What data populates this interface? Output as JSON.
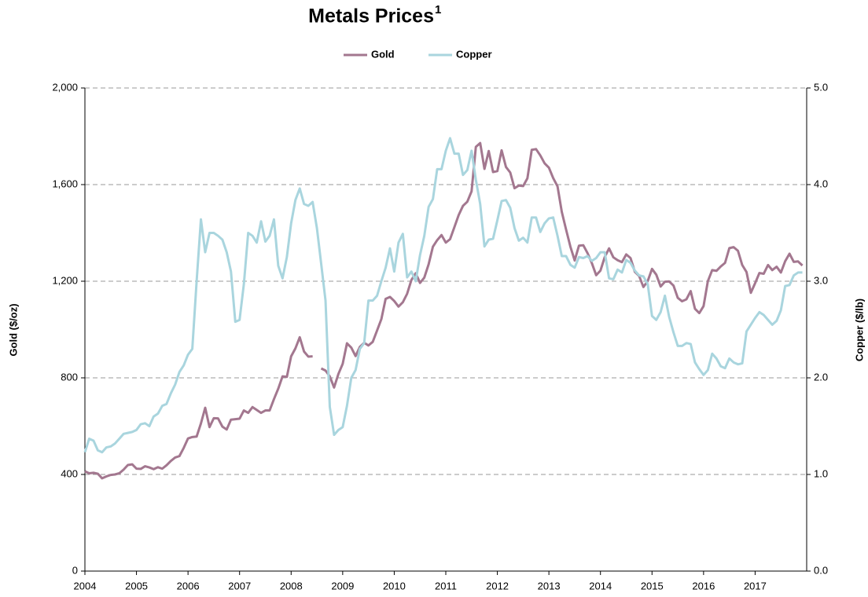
{
  "chart_data": {
    "type": "line",
    "title": "Metals Prices",
    "title_superscript": "1",
    "y_label": "Gold ($/oz)",
    "y2_label": "Copper ($/lb)",
    "xlim": [
      2004,
      2018
    ],
    "xticks": [
      2004,
      2005,
      2006,
      2007,
      2008,
      2009,
      2010,
      2011,
      2012,
      2013,
      2014,
      2015,
      2016,
      2017
    ],
    "ylim": [
      0,
      2000
    ],
    "yticks": [
      0,
      400,
      800,
      {
        "value": 1200,
        "label": "1,200"
      },
      {
        "value": 1600,
        "label": "1,600"
      },
      {
        "value": 2000,
        "label": "2,000"
      }
    ],
    "y2lim": [
      0,
      5
    ],
    "y2ticks": [
      {
        "value": 0,
        "label": "0.0"
      },
      {
        "value": 1,
        "label": "1.0"
      },
      {
        "value": 2,
        "label": "2.0"
      },
      {
        "value": 3,
        "label": "3.0"
      },
      {
        "value": 4,
        "label": "4.0"
      },
      {
        "value": 5,
        "label": "5.0"
      }
    ],
    "grid": true,
    "legend": "top",
    "x": [
      2004,
      2004.083,
      2004.167,
      2004.25,
      2004.333,
      2004.417,
      2004.5,
      2004.583,
      2004.667,
      2004.75,
      2004.833,
      2004.917,
      2005,
      2005.083,
      2005.167,
      2005.25,
      2005.333,
      2005.417,
      2005.5,
      2005.583,
      2005.667,
      2005.75,
      2005.833,
      2005.917,
      2006,
      2006.083,
      2006.167,
      2006.25,
      2006.333,
      2006.417,
      2006.5,
      2006.583,
      2006.667,
      2006.75,
      2006.833,
      2006.917,
      2007,
      2007.083,
      2007.167,
      2007.25,
      2007.333,
      2007.417,
      2007.5,
      2007.583,
      2007.667,
      2007.75,
      2007.833,
      2007.917,
      2008,
      2008.083,
      2008.167,
      2008.25,
      2008.333,
      2008.417,
      2008.5,
      2008.583,
      2008.667,
      2008.75,
      2008.833,
      2008.917,
      2009,
      2009.083,
      2009.167,
      2009.25,
      2009.333,
      2009.417,
      2009.5,
      2009.583,
      2009.667,
      2009.75,
      2009.833,
      2009.917,
      2010,
      2010.083,
      2010.167,
      2010.25,
      2010.333,
      2010.417,
      2010.5,
      2010.583,
      2010.667,
      2010.75,
      2010.833,
      2010.917,
      2011,
      2011.083,
      2011.167,
      2011.25,
      2011.333,
      2011.417,
      2011.5,
      2011.583,
      2011.667,
      2011.75,
      2011.833,
      2011.917,
      2012,
      2012.083,
      2012.167,
      2012.25,
      2012.333,
      2012.417,
      2012.5,
      2012.583,
      2012.667,
      2012.75,
      2012.833,
      2012.917,
      2013,
      2013.083,
      2013.167,
      2013.25,
      2013.333,
      2013.417,
      2013.5,
      2013.583,
      2013.667,
      2013.75,
      2013.833,
      2013.917,
      2014,
      2014.083,
      2014.167,
      2014.25,
      2014.333,
      2014.417,
      2014.5,
      2014.583,
      2014.667,
      2014.75,
      2014.833,
      2014.917,
      2015,
      2015.083,
      2015.167,
      2015.25,
      2015.333,
      2015.417,
      2015.5,
      2015.583,
      2015.667,
      2015.75,
      2015.833,
      2015.917,
      2016,
      2016.083,
      2016.167,
      2016.25,
      2016.333,
      2016.417,
      2016.5,
      2016.583,
      2016.667,
      2016.75,
      2016.833,
      2016.917,
      2017,
      2017.083,
      2017.167,
      2017.25,
      2017.333,
      2017.417,
      2017.5,
      2017.583,
      2017.667,
      2017.75,
      2017.833,
      2017.917
    ],
    "series": [
      {
        "name": "Gold",
        "color": "#a3778f",
        "axis": "y",
        "values": [
          413,
          405,
          407,
          403,
          384,
          392,
          398,
          400,
          405,
          420,
          439,
          442,
          424,
          423,
          434,
          429,
          422,
          430,
          424,
          438,
          456,
          470,
          476,
          510,
          549,
          555,
          557,
          611,
          676,
          596,
          633,
          632,
          598,
          586,
          627,
          629,
          631,
          665,
          655,
          679,
          667,
          655,
          665,
          665,
          712,
          755,
          806,
          804,
          889,
          922,
          968,
          909,
          888,
          889,
          null,
          839,
          830,
          806,
          760,
          816,
          858,
          943,
          925,
          890,
          928,
          945,
          934,
          949,
          996,
          1043,
          1127,
          1135,
          1118,
          1095,
          1113,
          1148,
          1205,
          1233,
          1193,
          1215,
          1270,
          1343,
          1370,
          1391,
          1360,
          1374,
          1424,
          1474,
          1512,
          1529,
          1572,
          1756,
          1772,
          1665,
          1739,
          1652,
          1656,
          1742,
          1673,
          1650,
          1585,
          1596,
          1594,
          1626,
          1744,
          1747,
          1721,
          1688,
          1670,
          1627,
          1593,
          1487,
          1414,
          1343,
          1286,
          1347,
          1349,
          1316,
          1275,
          1225,
          1244,
          1300,
          1336,
          1299,
          1287,
          1279,
          1311,
          1296,
          1239,
          1222,
          1176,
          1201,
          1251,
          1227,
          1178,
          1198,
          1199,
          1182,
          1131,
          1117,
          1125,
          1159,
          1086,
          1068,
          1097,
          1200,
          1246,
          1243,
          1261,
          1276,
          1337,
          1341,
          1326,
          1267,
          1238,
          1152,
          1192,
          1234,
          1231,
          1267,
          1246,
          1260,
          1236,
          1283,
          1314,
          1280,
          1282,
          1265
        ]
      },
      {
        "name": "Copper",
        "color": "#a9d5de",
        "axis": "y2",
        "values": [
          1.23,
          1.37,
          1.35,
          1.25,
          1.23,
          1.28,
          1.29,
          1.32,
          1.37,
          1.42,
          1.43,
          1.44,
          1.46,
          1.52,
          1.53,
          1.5,
          1.6,
          1.63,
          1.71,
          1.73,
          1.84,
          1.93,
          2.06,
          2.13,
          2.24,
          2.3,
          3.0,
          3.64,
          3.3,
          3.5,
          3.5,
          3.47,
          3.43,
          3.3,
          3.1,
          2.58,
          2.6,
          2.97,
          3.5,
          3.47,
          3.4,
          3.62,
          3.41,
          3.47,
          3.64,
          3.16,
          3.03,
          3.25,
          3.6,
          3.84,
          3.96,
          3.8,
          3.78,
          3.82,
          3.55,
          3.18,
          2.8,
          1.7,
          1.41,
          1.46,
          1.49,
          1.71,
          2.0,
          2.08,
          2.3,
          2.36,
          2.8,
          2.8,
          2.85,
          3.0,
          3.14,
          3.34,
          3.1,
          3.4,
          3.49,
          3.04,
          3.1,
          3.0,
          3.27,
          3.47,
          3.77,
          3.85,
          4.16,
          4.16,
          4.35,
          4.48,
          4.32,
          4.32,
          4.1,
          4.15,
          4.35,
          4.05,
          3.8,
          3.36,
          3.43,
          3.44,
          3.63,
          3.83,
          3.84,
          3.76,
          3.55,
          3.42,
          3.45,
          3.4,
          3.66,
          3.66,
          3.51,
          3.6,
          3.65,
          3.66,
          3.47,
          3.26,
          3.26,
          3.17,
          3.14,
          3.25,
          3.24,
          3.26,
          3.21,
          3.24,
          3.3,
          3.3,
          3.03,
          3.02,
          3.12,
          3.09,
          3.22,
          3.19,
          3.11,
          3.06,
          3.05,
          2.97,
          2.64,
          2.6,
          2.68,
          2.85,
          2.63,
          2.47,
          2.33,
          2.33,
          2.36,
          2.35,
          2.16,
          2.09,
          2.03,
          2.08,
          2.25,
          2.2,
          2.12,
          2.1,
          2.2,
          2.16,
          2.14,
          2.15,
          2.48,
          2.55,
          2.62,
          2.68,
          2.65,
          2.6,
          2.55,
          2.59,
          2.7,
          2.95,
          2.96,
          3.06,
          3.09,
          3.09
        ]
      }
    ]
  }
}
